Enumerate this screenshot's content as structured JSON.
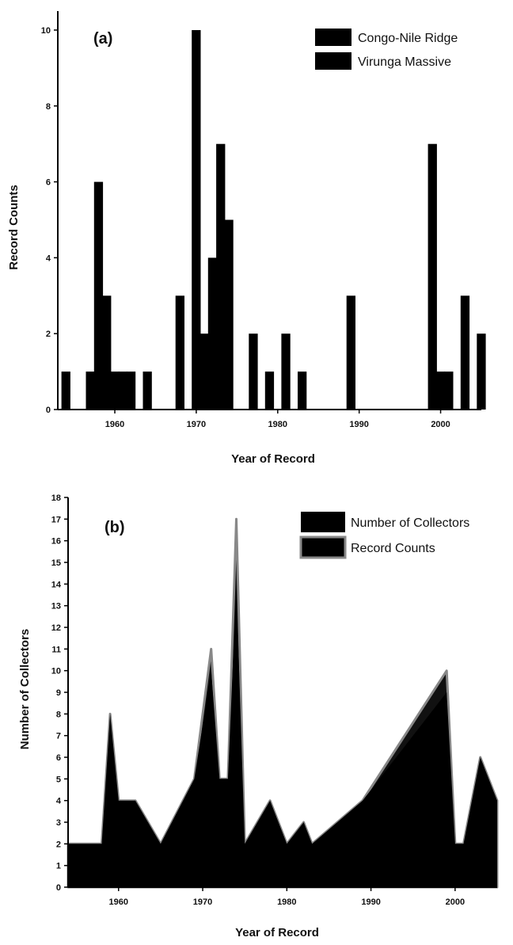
{
  "chart_data": [
    {
      "type": "bar",
      "panel_label": "(a)",
      "xlabel": "Year of Record",
      "ylabel": "Record Counts",
      "xlim": [
        1953,
        2005
      ],
      "ylim": [
        0,
        10.5
      ],
      "xticks": [
        1960,
        1970,
        1980,
        1990,
        2000
      ],
      "yticks": [
        0,
        2,
        4,
        6,
        8,
        10
      ],
      "grid": false,
      "legend_position": "top-right",
      "colors": {
        "Congo-Nile Ridge": "#000000",
        "Virunga Massive": "#000000"
      },
      "series": [
        {
          "name": "Congo-Nile Ridge",
          "x": [
            1954,
            1957,
            1958,
            1959,
            1960,
            1961,
            1962,
            1964,
            1968,
            1970,
            1971,
            1972,
            1973,
            1974,
            1977,
            1979,
            1981,
            1983,
            1989,
            1999,
            2000,
            2001,
            2003,
            2005
          ],
          "values": [
            1,
            1,
            6,
            3,
            1,
            1,
            1,
            1,
            3,
            10,
            2,
            4,
            7,
            5,
            2,
            1,
            2,
            1,
            3,
            7,
            1,
            1,
            3,
            2
          ]
        },
        {
          "name": "Virunga Massive",
          "x": [],
          "values": []
        }
      ]
    },
    {
      "type": "area",
      "panel_label": "(b)",
      "xlabel": "Year of Record",
      "ylabel": "Number of Collectors",
      "xlim": [
        1954,
        2005
      ],
      "ylim": [
        0,
        18
      ],
      "xticks": [
        1960,
        1970,
        1980,
        1990,
        2000
      ],
      "yticks": [
        0,
        1,
        2,
        3,
        4,
        5,
        6,
        7,
        8,
        9,
        10,
        11,
        12,
        13,
        14,
        15,
        16,
        17,
        18
      ],
      "grid": false,
      "legend_position": "top-right",
      "colors": {
        "Number of Collectors": "#000000",
        "Record Counts": "#888888"
      },
      "x": [
        1954,
        1958,
        1959,
        1960,
        1962,
        1965,
        1969,
        1971,
        1972,
        1973,
        1974,
        1975,
        1978,
        1980,
        1982,
        1983,
        1989,
        1999,
        2000,
        2001,
        2003,
        2005
      ],
      "series": [
        {
          "name": "Number of Collectors",
          "values": [
            2,
            2,
            8,
            4,
            4,
            2,
            5,
            10,
            5,
            5,
            14,
            2,
            4,
            2,
            3,
            2,
            4,
            9,
            2,
            2,
            6,
            4
          ]
        },
        {
          "name": "Record Counts",
          "values": [
            2,
            2,
            8,
            4,
            4,
            2,
            5,
            11,
            5,
            5,
            17,
            2,
            4,
            2,
            3,
            2,
            4,
            10,
            2,
            2,
            6,
            4
          ]
        }
      ]
    }
  ]
}
